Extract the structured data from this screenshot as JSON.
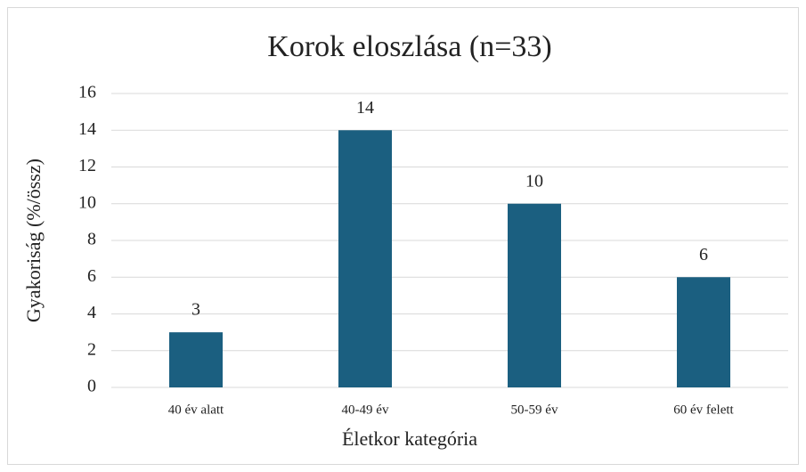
{
  "chart_data": {
    "type": "bar",
    "title": "Korok eloszlása (n=33)",
    "x_label": "Életkor kategória",
    "y_label": "Gyakoriság (%/össz)",
    "categories": [
      "40 év alatt",
      "40-49 év",
      "50-59 év",
      "60 év felett"
    ],
    "values": [
      3,
      14,
      10,
      6
    ],
    "color": "#1b5f80",
    "ylim": [
      0,
      16
    ],
    "yticks": [
      0,
      2,
      4,
      6,
      8,
      10,
      12,
      14,
      16
    ],
    "grid": true,
    "data_labels": true
  }
}
